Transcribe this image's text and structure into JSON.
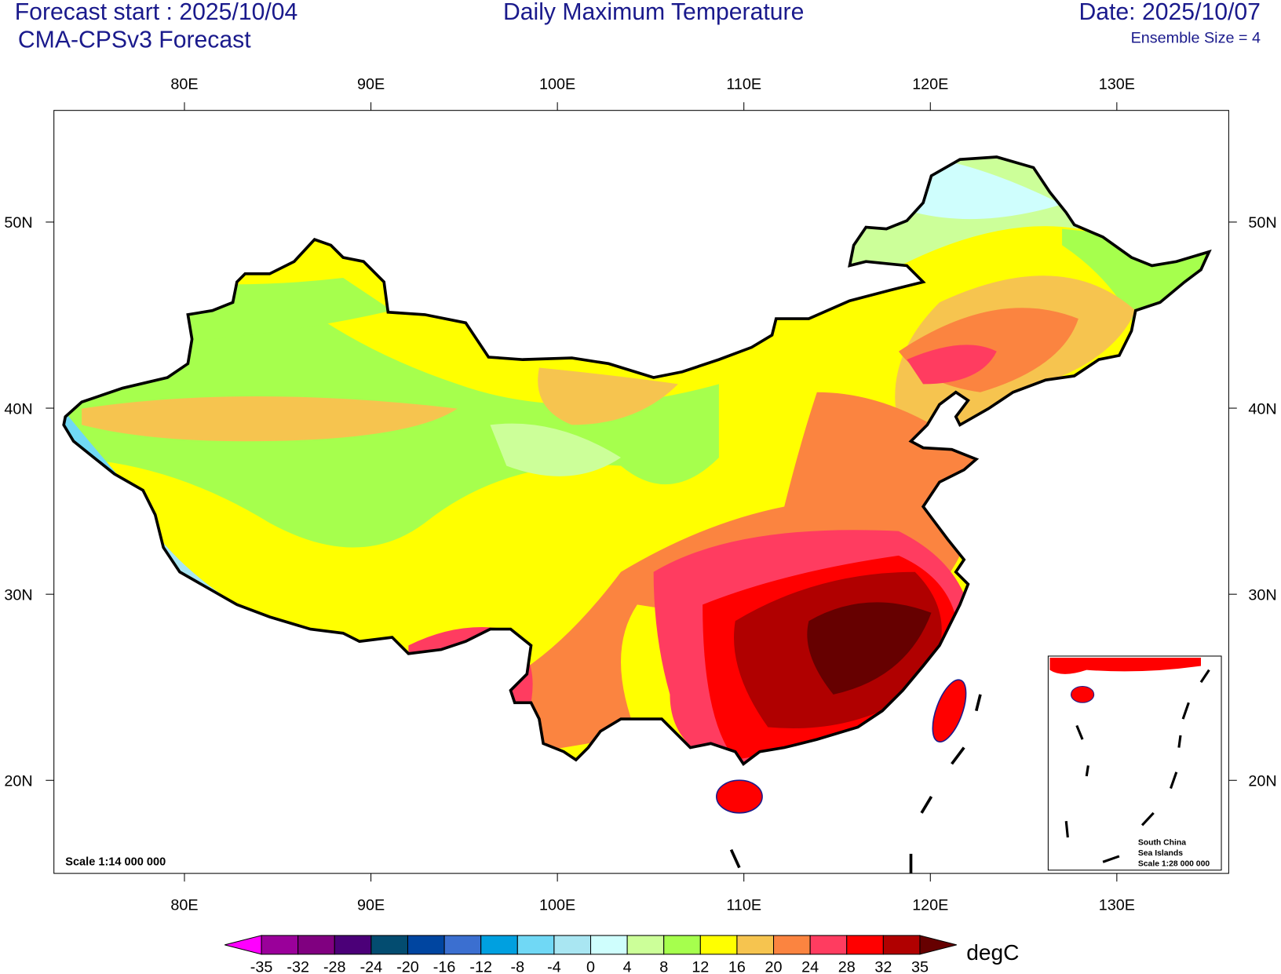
{
  "header": {
    "left1": "Forecast start : 2025/10/04",
    "left2": "CMA-CPSv3 Forecast",
    "title": "Daily Maximum Temperature",
    "right1": "Date: 2025/10/07",
    "right2": "Ensemble Size = 4"
  },
  "map": {
    "lonlim": [
      73,
      136
    ],
    "latlim": [
      15,
      56
    ],
    "lonticks": [
      {
        "value": 80,
        "label": "80E"
      },
      {
        "value": 90,
        "label": "90E"
      },
      {
        "value": 100,
        "label": "100E"
      },
      {
        "value": 110,
        "label": "110E"
      },
      {
        "value": 120,
        "label": "120E"
      },
      {
        "value": 130,
        "label": "130E"
      }
    ],
    "latticks": [
      {
        "value": 20,
        "label": "20N"
      },
      {
        "value": 30,
        "label": "30N"
      },
      {
        "value": 40,
        "label": "40N"
      },
      {
        "value": 50,
        "label": "50N"
      }
    ],
    "scale": "Scale 1:14 000 000",
    "inset": {
      "line1": "South China",
      "line2": "Sea Islands",
      "line3": "Scale 1:28 000 000"
    }
  },
  "colorbar": {
    "unit": "degC",
    "levels": [
      -35,
      -32,
      -28,
      -24,
      -20,
      -16,
      -12,
      -8,
      -4,
      0,
      4,
      8,
      12,
      16,
      20,
      24,
      28,
      32,
      35
    ],
    "colors": [
      "#ff00ff",
      "#9a009a",
      "#800080",
      "#4b0078",
      "#034c70",
      "#0045a0",
      "#3b6fd0",
      "#00a0e0",
      "#70d8f5",
      "#a9e6f2",
      "#cffefd",
      "#ccff99",
      "#a6ff4d",
      "#ffff00",
      "#f6c44f",
      "#fb8440",
      "#ff3c60",
      "#ff0000",
      "#b00000",
      "#660000"
    ]
  }
}
